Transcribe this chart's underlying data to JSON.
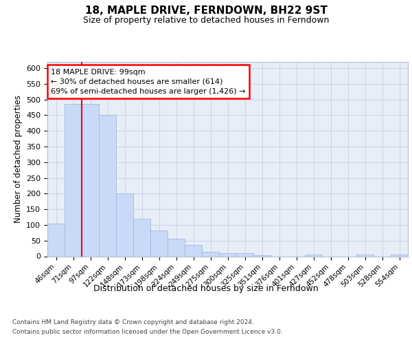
{
  "title": "18, MAPLE DRIVE, FERNDOWN, BH22 9ST",
  "subtitle": "Size of property relative to detached houses in Ferndown",
  "xlabel_bottom": "Distribution of detached houses by size in Ferndown",
  "ylabel": "Number of detached properties",
  "footer1": "Contains HM Land Registry data © Crown copyright and database right 2024.",
  "footer2": "Contains public sector information licensed under the Open Government Licence v3.0.",
  "annotation_title": "18 MAPLE DRIVE: 99sqm",
  "annotation_line1": "← 30% of detached houses are smaller (614)",
  "annotation_line2": "69% of semi-detached houses are larger (1,426) →",
  "bin_labels": [
    "46sqm",
    "71sqm",
    "97sqm",
    "122sqm",
    "148sqm",
    "173sqm",
    "198sqm",
    "224sqm",
    "249sqm",
    "275sqm",
    "300sqm",
    "325sqm",
    "351sqm",
    "376sqm",
    "401sqm",
    "427sqm",
    "452sqm",
    "478sqm",
    "503sqm",
    "528sqm",
    "554sqm"
  ],
  "bar_values": [
    105,
    487,
    487,
    452,
    200,
    120,
    82,
    55,
    37,
    15,
    10,
    10,
    3,
    0,
    0,
    5,
    0,
    0,
    5,
    0,
    5
  ],
  "bar_color": "#c9daf8",
  "bar_edge_color": "#a0b8d8",
  "vline_bin": 2,
  "vline_color": "red",
  "annotation_box_color": "white",
  "annotation_box_edge": "red",
  "ylim": [
    0,
    620
  ],
  "yticks": [
    0,
    50,
    100,
    150,
    200,
    250,
    300,
    350,
    400,
    450,
    500,
    550,
    600
  ],
  "grid_color": "#c8d4e8",
  "plot_bg_color": "#e8eef8"
}
